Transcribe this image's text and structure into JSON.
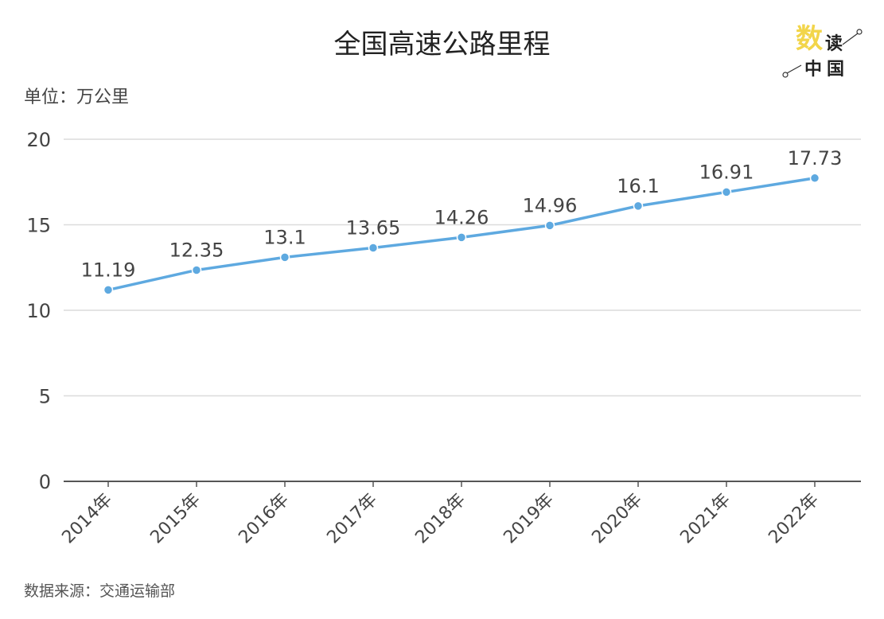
{
  "title": "全国高速公路里程",
  "unit_label": "单位：万公里",
  "source": "数据来源：交通运输部",
  "logo": {
    "text_1": "数",
    "text_2": "读",
    "text_3": "中国"
  },
  "colors": {
    "line": "#5ea9e0",
    "grid": "#dcdcdc",
    "axis": "#555555",
    "logo_yellow": "#f2d54a"
  },
  "chart_data": {
    "type": "line",
    "title": "全国高速公路里程",
    "ylabel": "单位：万公里",
    "categories": [
      "2014年",
      "2015年",
      "2016年",
      "2017年",
      "2018年",
      "2019年",
      "2020年",
      "2021年",
      "2022年"
    ],
    "values": [
      11.19,
      12.35,
      13.1,
      13.65,
      14.26,
      14.96,
      16.1,
      16.91,
      17.73
    ],
    "data_labels": [
      "11.19",
      "12.35",
      "13.1",
      "13.65",
      "14.26",
      "14.96",
      "16.1",
      "16.91",
      "17.73"
    ],
    "ylim": [
      0,
      20
    ],
    "yticks": [
      0,
      5,
      10,
      15,
      20
    ],
    "grid": true,
    "legend": "none"
  }
}
